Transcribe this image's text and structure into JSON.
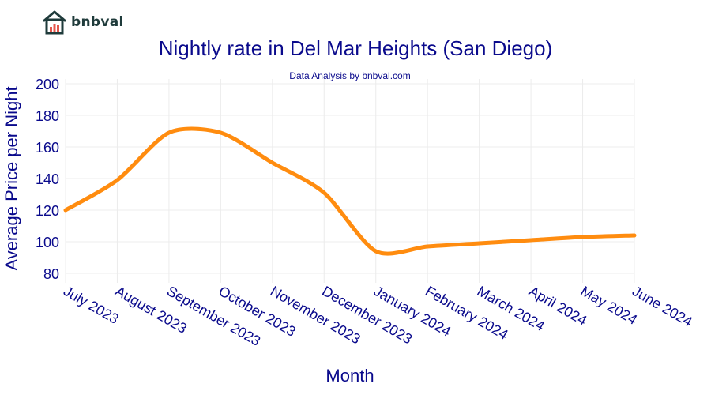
{
  "brand": {
    "name": "bnbval",
    "logo_icon": "house-chart-icon"
  },
  "chart_data": {
    "type": "line",
    "title": "Nightly rate in Del Mar Heights (San Diego)",
    "subtitle": "Data Analysis by bnbval.com",
    "xlabel": "Month",
    "ylabel": "Average Price per Night",
    "categories": [
      "July 2023",
      "August 2023",
      "September 2023",
      "October 2023",
      "November 2023",
      "December 2023",
      "January 2024",
      "February 2024",
      "March 2024",
      "April 2024",
      "May 2024",
      "June 2024"
    ],
    "series": [
      {
        "values": [
          120,
          139,
          169,
          169,
          150,
          131,
          94,
          97,
          99,
          101,
          103,
          104
        ],
        "color": "#ff8c0f"
      }
    ],
    "yticks": [
      80,
      100,
      120,
      140,
      160,
      180,
      200
    ],
    "ylim": [
      74,
      203
    ],
    "grid": true,
    "legend": "none",
    "colors": {
      "title": "#0a0a8c",
      "axis_text": "#0a0a8c",
      "grid": "#ececec",
      "line": "#ff8c0f"
    }
  }
}
